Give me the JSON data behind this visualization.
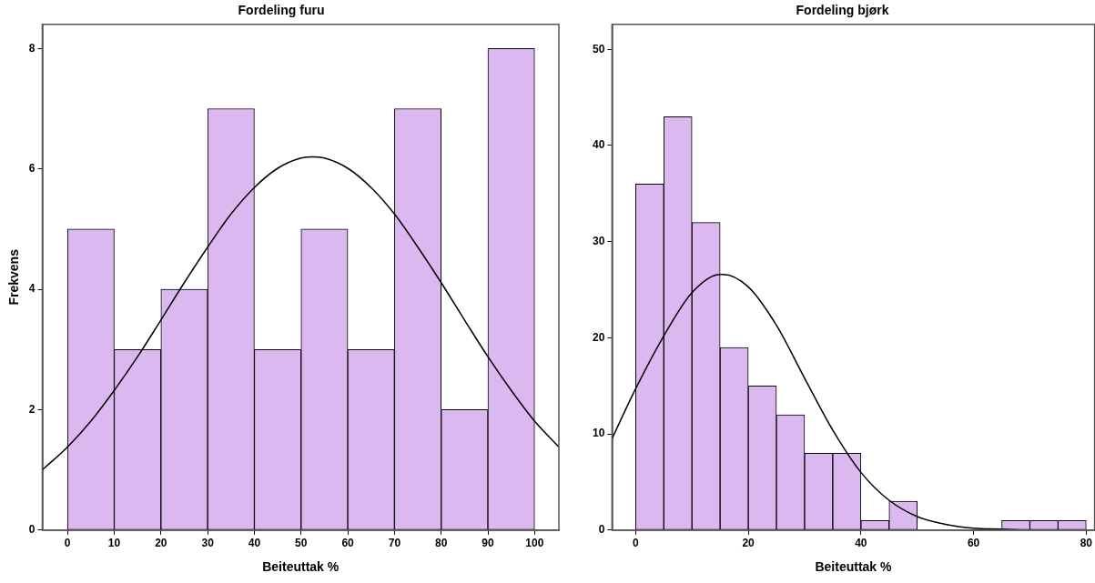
{
  "chart_data": [
    {
      "type": "histogram",
      "title": "Fordeling furu",
      "xlabel": "Beiteuttak %",
      "ylabel": "Frekvens",
      "bins": [
        0,
        10,
        20,
        30,
        40,
        50,
        60,
        70,
        80,
        90,
        100
      ],
      "values": [
        5,
        3,
        4,
        7,
        3,
        5,
        3,
        7,
        2,
        8
      ],
      "color": "#dcb8f0",
      "series": [
        {
          "type": "line",
          "color": "#000000",
          "x": [
            -5.4,
            0,
            5,
            10,
            15,
            20,
            25,
            30,
            35,
            40,
            45,
            50,
            52.5,
            55,
            60,
            65,
            70,
            75,
            80,
            85,
            90,
            95,
            100,
            105.2
          ],
          "values": [
            1.0,
            1.38,
            1.81,
            2.32,
            2.88,
            3.49,
            4.11,
            4.7,
            5.25,
            5.69,
            6.01,
            6.18,
            6.2,
            6.18,
            6.01,
            5.69,
            5.25,
            4.7,
            4.11,
            3.49,
            2.88,
            2.32,
            1.81,
            1.38
          ]
        }
      ],
      "xlim": [
        -5.4,
        105.2
      ],
      "xticks": [
        0,
        10,
        20,
        30,
        40,
        50,
        60,
        70,
        80,
        90,
        100
      ],
      "ylim": [
        0,
        8.4
      ],
      "yticks": [
        0,
        2,
        4,
        6,
        8
      ],
      "grid": false,
      "legend": false,
      "marker": "none"
    },
    {
      "type": "histogram",
      "title": "Fordeling bjørk",
      "xlabel": "Beiteuttak %",
      "bins": [
        0,
        5,
        10,
        15,
        20,
        25,
        30,
        35,
        40,
        45,
        50,
        55,
        60,
        65,
        70,
        75,
        80
      ],
      "values": [
        36,
        43,
        32,
        19,
        15,
        12,
        8,
        8,
        1,
        3,
        0,
        0,
        0,
        1,
        1,
        1
      ],
      "color": "#dcb8f0",
      "series": [
        {
          "type": "line",
          "color": "#000000",
          "x": [
            -4.2,
            0,
            5,
            10,
            15,
            15.5,
            20,
            25,
            30,
            35,
            40,
            45,
            50,
            55,
            60,
            65,
            70,
            81.5
          ],
          "values": [
            9.5,
            14.7,
            20.2,
            24.7,
            26.6,
            26.6,
            25.3,
            21.3,
            15.8,
            10.4,
            6.0,
            3.1,
            1.4,
            0.6,
            0.2,
            0.1,
            0,
            0
          ]
        }
      ],
      "xlim": [
        -4.2,
        81.5
      ],
      "xticks": [
        0,
        20,
        40,
        60,
        80
      ],
      "ylim": [
        0,
        52.6
      ],
      "yticks": [
        0,
        10,
        20,
        30,
        40,
        50
      ],
      "grid": false,
      "legend": false,
      "marker": "none"
    }
  ]
}
